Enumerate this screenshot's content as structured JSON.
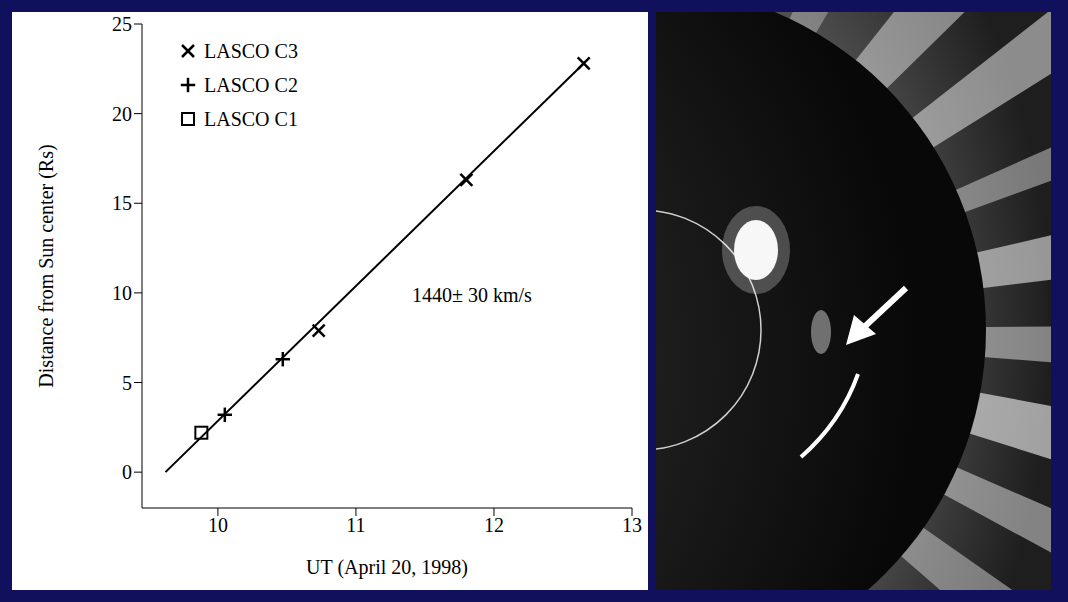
{
  "chart_data": {
    "type": "scatter",
    "xlabel": "UT (April 20, 1998)",
    "ylabel": "Distance from Sun center (Rs)",
    "xlim": [
      9.45,
      13
    ],
    "xticks": [
      10,
      11,
      12,
      13
    ],
    "ylim": [
      -2,
      25
    ],
    "yticks": [
      0,
      5,
      10,
      15,
      20,
      25
    ],
    "legend": "upper left",
    "series": [
      {
        "name": "LASCO C3",
        "marker": "x",
        "color": "#000000",
        "x": [
          10.73,
          11.8,
          12.65
        ],
        "values": [
          7.9,
          16.3,
          22.8
        ]
      },
      {
        "name": "LASCO C2",
        "marker": "plus",
        "color": "#000000",
        "x": [
          10.05,
          10.47
        ],
        "values": [
          3.2,
          6.3
        ]
      },
      {
        "name": "LASCO C1",
        "marker": "square",
        "color": "#000000",
        "x": [
          9.88
        ],
        "values": [
          2.2
        ]
      },
      {
        "type": "line",
        "line_style": "solid",
        "color": "#000000",
        "x": [
          9.62,
          12.65
        ],
        "values": [
          0,
          22.8
        ]
      }
    ],
    "annotations": [
      "1440± 30 km/s"
    ]
  }
}
